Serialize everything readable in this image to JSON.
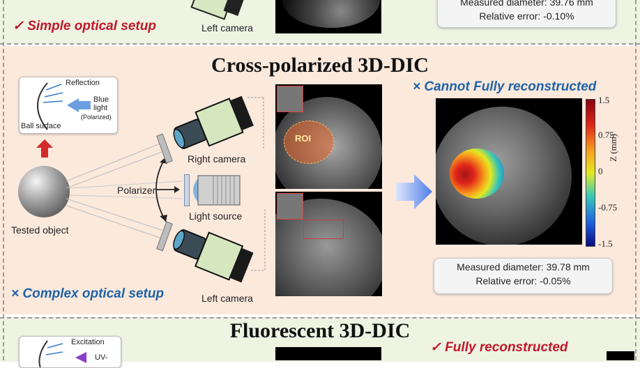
{
  "top_panel": {
    "advantage": "✓ Simple optical setup",
    "camera_label": "Left camera",
    "measured_diameter": "Measured diameter: 39.76 mm",
    "relative_error": "Relative error: -0.10%"
  },
  "middle_panel": {
    "title": "Cross-polarized 3D-DIC",
    "inset": {
      "reflection": "Reflection",
      "blue_light": "Blue",
      "blue_light_2": "light",
      "polarized": "(Polarized)",
      "ball_surface": "Ball surface"
    },
    "right_camera": "Right camera",
    "left_camera": "Left camera",
    "polarizer": "Polarizer",
    "light_source": "Light source",
    "tested_object": "Tested object",
    "roi": "ROI",
    "result_note": "× Cannot Fully reconstructed",
    "disadvantage": "× Complex optical setup",
    "measured_diameter": "Measured diameter: 39.78 mm",
    "relative_error": "Relative error: -0.05%",
    "colorbar": {
      "ticks": [
        "1.5",
        "0.75",
        "0",
        "-0.75",
        "-1.5"
      ],
      "label": "Z (mm)"
    }
  },
  "bottom_panel": {
    "title": "Fluorescent 3D-DIC",
    "excitation": "Excitation",
    "uv": "UV-",
    "result_note": "✓ Fully reconstructed"
  },
  "colors": {
    "red_accent": "#c0182a",
    "blue_accent": "#1f63a8",
    "panel_warm": "#fbe9dc",
    "panel_green": "#eef3e2"
  }
}
